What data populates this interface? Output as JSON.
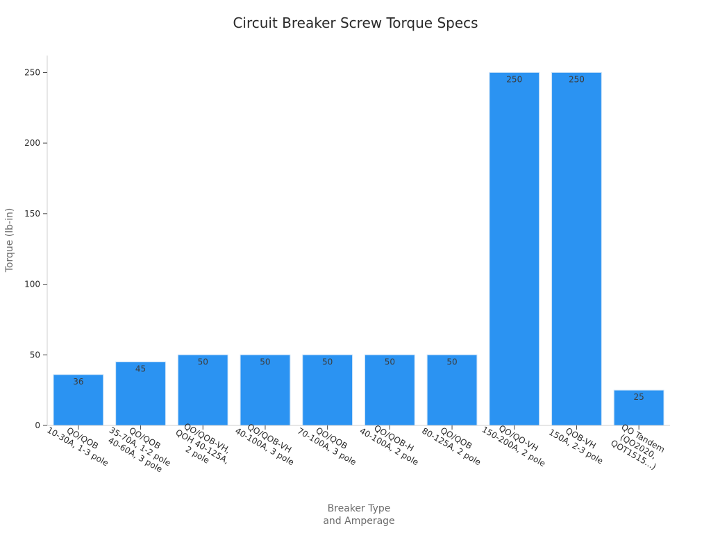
{
  "chart_data": {
    "type": "bar",
    "title": "Circuit Breaker Screw Torque Specs",
    "xlabel": "Breaker Type\nand Amperage",
    "ylabel": "Torque (lb-in)",
    "categories": [
      "QO/QOB\n10-30A, 1-3 pole",
      "QO/QOB\n35-70A, 1-2 pole\n40-60A, 3 pole",
      "QO/QOB-VH,\nQOH 40-125A,\n2 pole",
      "QO/QOB-VH\n40-100A, 3 pole",
      "QO/QOB\n70-100A, 3 pole",
      "QO/QOB-H\n40-100A, 2 pole",
      "QO/QOB\n80-125A, 2 pole",
      "QO/QO-VH\n150-200A, 2 pole",
      "QOB-VH\n150A, 2-3 pole",
      "QO Tandem\n(QO2020,\nQOT1515...)"
    ],
    "values": [
      36,
      45,
      50,
      50,
      50,
      50,
      50,
      250,
      250,
      25
    ],
    "ylim": [
      0,
      262
    ],
    "yticks": [
      0,
      50,
      100,
      150,
      200,
      250
    ],
    "grid": false,
    "legend": "none",
    "bar_color": "#2b93f2",
    "bar_edge_color": "#c9e1f7"
  }
}
